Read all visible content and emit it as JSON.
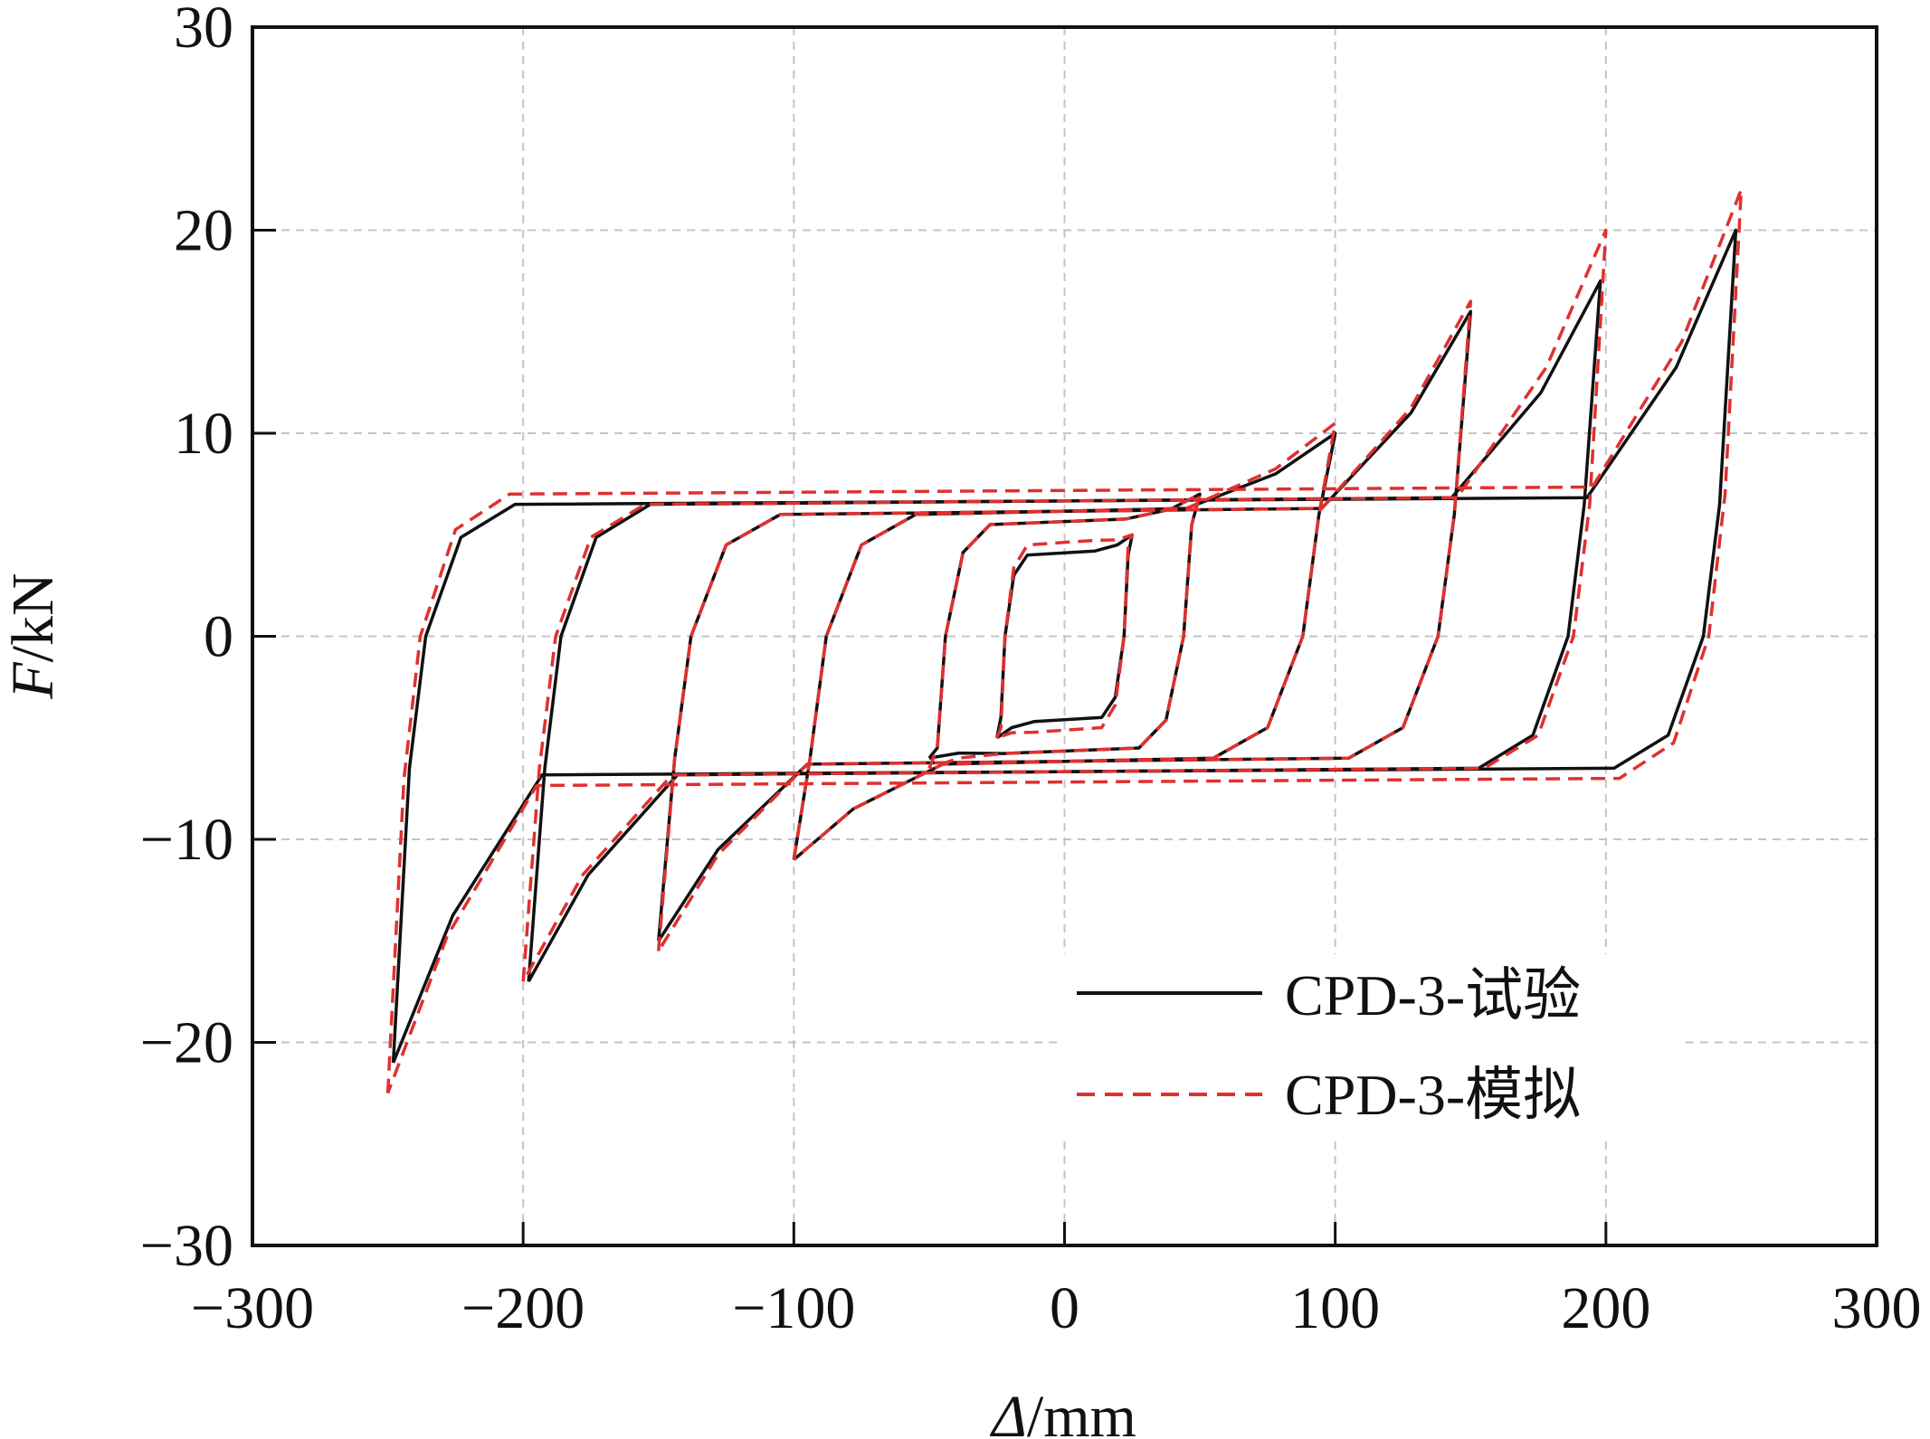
{
  "chart_data": {
    "type": "line",
    "title": "",
    "xlabel_symbol": "Δ",
    "xlabel_unit": "/mm",
    "ylabel_symbol": "F",
    "ylabel_unit": "/kN",
    "xlim": [
      -300,
      300
    ],
    "ylim": [
      -30,
      30
    ],
    "xticks": [
      -300,
      -200,
      -100,
      0,
      100,
      200,
      300
    ],
    "yticks": [
      -30,
      -20,
      -10,
      0,
      10,
      20,
      30
    ],
    "xtick_labels": [
      "−300",
      "−200",
      "−100",
      "0",
      "100",
      "200",
      "300"
    ],
    "ytick_labels": [
      "−30",
      "−20",
      "−10",
      "0",
      "10",
      "20",
      "30"
    ],
    "grid": true,
    "legend_position": "bottom-right",
    "series": [
      {
        "name": "CPD-3-试验",
        "color": "#111111",
        "style": "solid",
        "cycles": [
          {
            "amplitude": 25,
            "f_max": 5,
            "f_min": -5,
            "plateau": 4
          },
          {
            "amplitude": 50,
            "f_max": 7,
            "f_min": -6,
            "plateau": 5.5
          },
          {
            "amplitude": 100,
            "f_max": 10,
            "f_min": -11,
            "plateau": 6
          },
          {
            "amplitude": 150,
            "f_max": 16,
            "f_min": -15,
            "plateau": 6
          },
          {
            "amplitude": 198,
            "f_max": 17.5,
            "f_min": -17,
            "plateau": 6.5
          },
          {
            "amplitude": 248,
            "f_max": 20,
            "f_min": -21,
            "plateau": 6.5
          }
        ]
      },
      {
        "name": "CPD-3-模拟",
        "color": "#e03030",
        "style": "dashed",
        "cycles": [
          {
            "amplitude": 25,
            "f_max": 5,
            "f_min": -5,
            "plateau": 4.5
          },
          {
            "amplitude": 50,
            "f_max": 7,
            "f_min": -6.5,
            "plateau": 5.5
          },
          {
            "amplitude": 100,
            "f_max": 10.5,
            "f_min": -11,
            "plateau": 6
          },
          {
            "amplitude": 150,
            "f_max": 16.5,
            "f_min": -15.5,
            "plateau": 6
          },
          {
            "amplitude": 200,
            "f_max": 20,
            "f_min": -17,
            "plateau": 6.5
          },
          {
            "amplitude": 250,
            "f_max": 22,
            "f_min": -22.5,
            "plateau": 7
          }
        ]
      }
    ]
  }
}
